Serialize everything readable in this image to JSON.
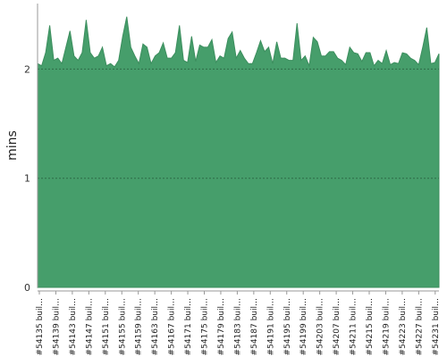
{
  "colors": {
    "area_fill": "#469e6b",
    "area_stroke": "#3c8e5e",
    "grid": "#2f6b48",
    "axis": "#999999"
  },
  "chart_data": {
    "type": "area",
    "ylabel": "mins",
    "ylim": [
      0,
      2.6
    ],
    "yticks": [
      "0",
      "1",
      "2"
    ],
    "grid": true,
    "x_tick_labels": [
      "#54135 buil…",
      "#54139 buil…",
      "#54143 buil…",
      "#54147 buil…",
      "#54151 buil…",
      "#54155 buil…",
      "#54159 buil…",
      "#54163 buil…",
      "#54167 buil…",
      "#54171 buil…",
      "#54175 buil…",
      "#54179 buil…",
      "#54183 buil…",
      "#54187 buil…",
      "#54191 buil…",
      "#54195 buil…",
      "#54199 buil…",
      "#54203 buil…",
      "#54207 buil…",
      "#54211 buil…",
      "#54215 buil…",
      "#54219 buil…",
      "#54223 buil…",
      "#54227 buil…",
      "#54231 buil…"
    ],
    "series": [
      {
        "values": [
          2.05,
          2.03,
          2.15,
          2.4,
          2.08,
          2.1,
          2.05,
          2.2,
          2.35,
          2.12,
          2.08,
          2.15,
          2.45,
          2.15,
          2.1,
          2.12,
          2.2,
          2.03,
          2.05,
          2.02,
          2.08,
          2.3,
          2.48,
          2.2,
          2.12,
          2.05,
          2.23,
          2.2,
          2.05,
          2.12,
          2.15,
          2.24,
          2.1,
          2.1,
          2.15,
          2.4,
          2.08,
          2.06,
          2.3,
          2.07,
          2.22,
          2.2,
          2.2,
          2.27,
          2.06,
          2.12,
          2.1,
          2.28,
          2.34,
          2.1,
          2.17,
          2.1,
          2.05,
          2.05,
          2.15,
          2.26,
          2.16,
          2.2,
          2.05,
          2.25,
          2.1,
          2.1,
          2.08,
          2.08,
          2.42,
          2.08,
          2.12,
          2.03,
          2.29,
          2.25,
          2.12,
          2.12,
          2.16,
          2.16,
          2.1,
          2.08,
          2.04,
          2.2,
          2.15,
          2.14,
          2.07,
          2.15,
          2.15,
          2.03,
          2.08,
          2.05,
          2.17,
          2.04,
          2.06,
          2.05,
          2.15,
          2.14,
          2.1,
          2.08,
          2.04,
          2.2,
          2.38,
          2.05,
          2.06,
          2.14
        ]
      }
    ]
  }
}
